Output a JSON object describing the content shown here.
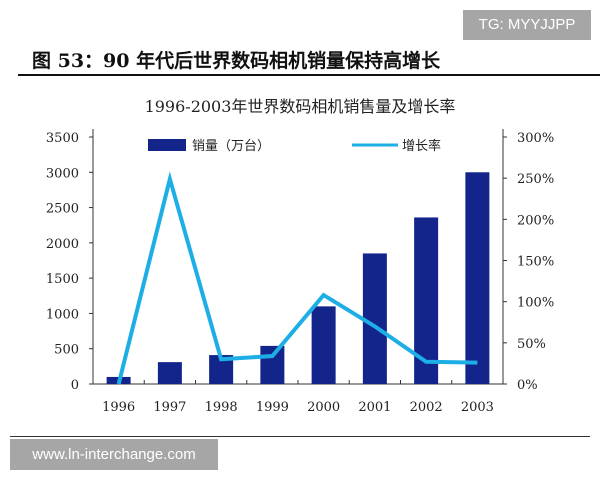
{
  "watermark_top": "TG: MYYJJPP",
  "figure_title": "图 53：90 年代后世界数码相机销量保持高增长",
  "watermark_bottom": "www.ln-interchange.com",
  "chart_data": {
    "type": "bar+line",
    "title": "1996-2003年世界数码相机销售量及增长率",
    "categories": [
      "1996",
      "1997",
      "1998",
      "1999",
      "2000",
      "2001",
      "2002",
      "2003"
    ],
    "series": [
      {
        "name": "销量（万台）",
        "type": "bar",
        "axis": "left",
        "color": "#13258a",
        "values": [
          100,
          310,
          410,
          540,
          1100,
          1850,
          2360,
          3000
        ]
      },
      {
        "name": "增长率",
        "type": "line",
        "axis": "right",
        "color": "#1eaee6",
        "values": [
          0,
          249,
          30,
          34,
          108,
          70,
          27,
          26
        ]
      }
    ],
    "y_left": {
      "range": [
        0,
        3500
      ],
      "ticks": [
        "0",
        "500",
        "1000",
        "1500",
        "2000",
        "2500",
        "3000",
        "3500"
      ]
    },
    "y_right": {
      "range": [
        0,
        300
      ],
      "unit": "%",
      "ticks": [
        "0%",
        "50%",
        "100%",
        "150%",
        "200%",
        "250%",
        "300%"
      ]
    },
    "legend": "top",
    "grid": false
  }
}
